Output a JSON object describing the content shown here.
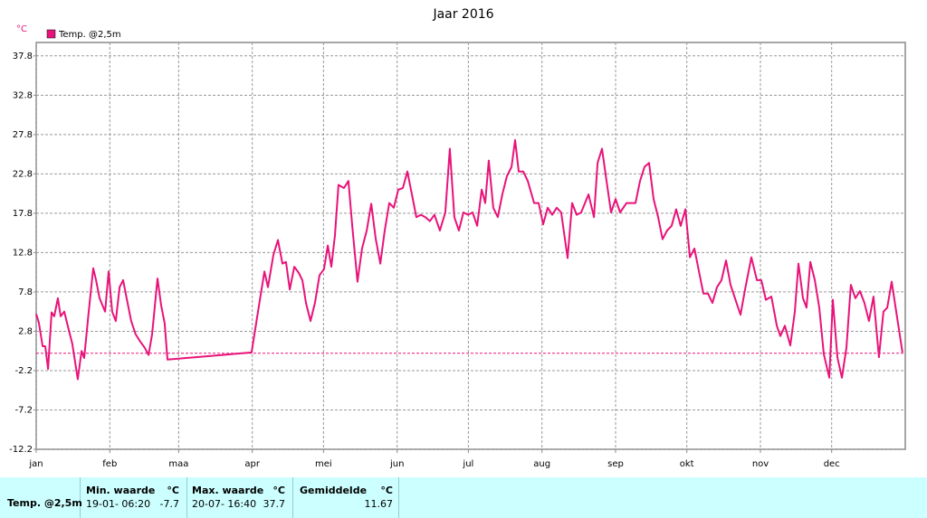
{
  "chart_data": {
    "type": "line",
    "title": "Jaar 2016",
    "y_label": "°C",
    "grid": true,
    "zero_line": true,
    "legend": "top-left",
    "xlim": [
      0,
      366
    ],
    "xticks": [
      {
        "value": 0,
        "label": "jan"
      },
      {
        "value": 31,
        "label": "feb"
      },
      {
        "value": 60,
        "label": "maa"
      },
      {
        "value": 91,
        "label": "apr"
      },
      {
        "value": 121,
        "label": "mei"
      },
      {
        "value": 152,
        "label": "jun"
      },
      {
        "value": 182,
        "label": "jul"
      },
      {
        "value": 213,
        "label": "aug"
      },
      {
        "value": 244,
        "label": "sep"
      },
      {
        "value": 274,
        "label": "okt"
      },
      {
        "value": 305,
        "label": "nov"
      },
      {
        "value": 335,
        "label": "dec"
      }
    ],
    "ylim": [
      -12.2,
      39.5
    ],
    "yticks": [
      -12.2,
      -7.2,
      -2.2,
      2.8,
      7.8,
      12.8,
      17.8,
      22.8,
      27.8,
      32.8,
      37.8
    ],
    "x": [
      0,
      1.1,
      2.7,
      3.8,
      5.0,
      6.5,
      7.6,
      9.1,
      10.3,
      11.8,
      13.7,
      15.2,
      17.5,
      19.1,
      20.2,
      22.1,
      24.0,
      25.2,
      26.7,
      29.0,
      30.5,
      32.0,
      33.5,
      35.1,
      36.6,
      38.1,
      40.0,
      41.9,
      43.8,
      45.7,
      47.3,
      48.8,
      51.1,
      52.6,
      54.1,
      55.3,
      90.7,
      93.4,
      96.1,
      97.6,
      99.9,
      101.8,
      103.7,
      105.2,
      106.8,
      108.7,
      110.6,
      112.1,
      113.6,
      115.5,
      117.4,
      119.3,
      121.2,
      122.8,
      124.3,
      125.8,
      127.3,
      129.6,
      131.5,
      133.1,
      135.3,
      137.2,
      139.2,
      141.1,
      143.0,
      144.9,
      146.8,
      148.7,
      150.6,
      152.5,
      154.4,
      156.3,
      158.2,
      160.1,
      162.0,
      163.9,
      165.8,
      167.7,
      170.0,
      172.3,
      174.2,
      176.1,
      178.0,
      179.9,
      181.9,
      183.8,
      185.7,
      187.6,
      189.1,
      190.6,
      192.5,
      194.4,
      196.3,
      198.2,
      200.2,
      201.7,
      203.2,
      205.1,
      207.0,
      209.7,
      211.6,
      213.5,
      215.4,
      217.3,
      219.2,
      221.1,
      223.8,
      225.7,
      227.6,
      229.5,
      232.6,
      234.9,
      236.4,
      238.3,
      240.2,
      242.1,
      244.0,
      245.9,
      248.6,
      250.5,
      252.4,
      254.3,
      256.2,
      258.1,
      260.0,
      261.9,
      263.8,
      265.7,
      267.6,
      269.5,
      271.4,
      273.4,
      275.3,
      277.2,
      279.1,
      281.0,
      282.9,
      284.8,
      286.7,
      288.6,
      290.5,
      292.4,
      294.3,
      296.6,
      298.5,
      301.2,
      303.5,
      305.4,
      307.3,
      309.6,
      311.9,
      313.4,
      315.3,
      317.6,
      319.5,
      321.0,
      322.9,
      324.4,
      326.0,
      327.9,
      329.8,
      331.7,
      334.0,
      335.5,
      337.4,
      339.3,
      341.2,
      343.1,
      345.0,
      346.9,
      348.8,
      350.7,
      352.6,
      354.9,
      356.8,
      358.4,
      360.3,
      362.2,
      364.8
    ],
    "series": [
      {
        "name": "Temp. @2,5m",
        "color": "#e8137a",
        "values": [
          5.0,
          3.9,
          0.9,
          0.9,
          -2.0,
          5.2,
          4.7,
          7.0,
          4.7,
          5.3,
          3.0,
          1.2,
          -3.3,
          0.3,
          -0.6,
          5.3,
          10.8,
          9.3,
          7.0,
          5.3,
          10.4,
          5.3,
          4.1,
          8.4,
          9.3,
          7.0,
          4.1,
          2.4,
          1.5,
          0.7,
          -0.2,
          2.4,
          9.5,
          6.1,
          3.8,
          -0.8,
          0.1,
          5.3,
          10.4,
          8.4,
          12.5,
          14.4,
          11.4,
          11.6,
          8.1,
          11.0,
          10.2,
          9.3,
          6.4,
          4.1,
          6.4,
          9.9,
          10.7,
          13.7,
          11.0,
          15.0,
          21.4,
          21.0,
          21.9,
          16.2,
          9.1,
          13.3,
          15.6,
          19.0,
          14.5,
          11.4,
          15.6,
          19.1,
          18.5,
          20.8,
          21.0,
          23.1,
          20.2,
          17.3,
          17.6,
          17.3,
          16.8,
          17.6,
          15.6,
          17.9,
          26.0,
          17.3,
          15.6,
          17.9,
          17.6,
          17.9,
          16.2,
          20.8,
          19.1,
          24.5,
          18.5,
          17.3,
          20.2,
          22.5,
          23.7,
          27.1,
          23.1,
          23.1,
          21.9,
          19.1,
          19.1,
          16.4,
          18.5,
          17.6,
          18.5,
          17.9,
          12.1,
          19.1,
          17.6,
          17.9,
          20.2,
          17.3,
          24.2,
          26.0,
          21.9,
          17.9,
          19.6,
          17.9,
          19.1,
          19.1,
          19.1,
          21.9,
          23.7,
          24.2,
          19.6,
          17.3,
          14.5,
          15.6,
          16.2,
          18.3,
          16.2,
          18.3,
          12.2,
          13.3,
          10.4,
          7.6,
          7.6,
          6.4,
          8.4,
          9.3,
          11.8,
          8.7,
          7.0,
          4.9,
          8.1,
          12.2,
          9.3,
          9.3,
          6.8,
          7.2,
          3.5,
          2.2,
          3.5,
          1.0,
          5.3,
          11.4,
          7.0,
          5.8,
          11.6,
          9.3,
          5.8,
          -0.1,
          -3.1,
          6.8,
          -0.5,
          -3.1,
          0.7,
          8.7,
          7.0,
          7.9,
          6.4,
          4.1,
          7.2,
          -0.5,
          5.3,
          5.8,
          9.1,
          5.3,
          0.1
        ]
      }
    ]
  },
  "summary": {
    "row_label": "Temp. @2,5m",
    "columns": [
      {
        "title": "Min. waarde",
        "unit": "°C",
        "time": "19-01- 06:20",
        "value": -7.7
      },
      {
        "title": "Max. waarde",
        "unit": "°C",
        "time": "20-07- 16:40",
        "value": 37.7
      },
      {
        "title": "Gemiddelde",
        "unit": "°C",
        "value": 11.67
      }
    ]
  }
}
